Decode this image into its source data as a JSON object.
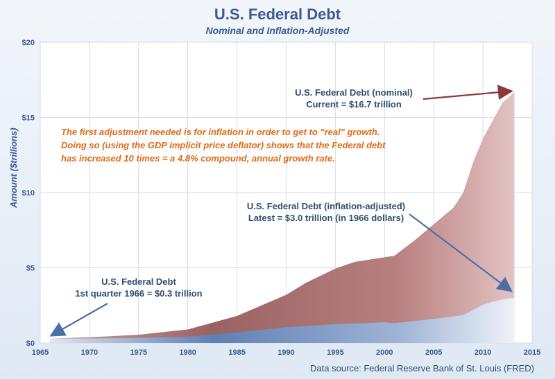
{
  "chart_data": {
    "type": "area",
    "title": "U.S. Federal Debt",
    "subtitle": "Nominal and Inflation-Adjusted",
    "xlabel": "",
    "ylabel": "Amount ($trillions)",
    "xlim": [
      1965,
      2015
    ],
    "ylim": [
      0,
      20
    ],
    "x_ticks": [
      1965,
      1970,
      1975,
      1980,
      1985,
      1990,
      1995,
      2000,
      2005,
      2010,
      2015
    ],
    "y_ticks": [
      0,
      5,
      10,
      15,
      20
    ],
    "y_tick_labels": [
      "$0",
      "$5",
      "$10",
      "$15",
      "$20"
    ],
    "grid": true,
    "series": [
      {
        "name": "U.S. Federal Debt (nominal)",
        "color": "#a8696a",
        "x": [
          1966,
          1970,
          1975,
          1980,
          1985,
          1990,
          1992,
          1995,
          1997,
          2000,
          2001,
          2003,
          2005,
          2007,
          2008,
          2009,
          2010,
          2011,
          2012,
          2013.2
        ],
        "y": [
          0.3,
          0.38,
          0.55,
          0.9,
          1.8,
          3.2,
          4.0,
          4.95,
          5.4,
          5.7,
          5.8,
          6.8,
          7.9,
          9.0,
          10.0,
          12.0,
          13.6,
          14.8,
          16.0,
          16.7
        ]
      },
      {
        "name": "U.S. Federal Debt (inflation-adjusted)",
        "color": "#6a86b8",
        "x": [
          1966,
          1970,
          1975,
          1980,
          1985,
          1990,
          1995,
          2000,
          2001,
          2005,
          2008,
          2009,
          2010,
          2011,
          2012,
          2013.2
        ],
        "y": [
          0.3,
          0.3,
          0.33,
          0.42,
          0.7,
          1.05,
          1.25,
          1.37,
          1.32,
          1.6,
          1.85,
          2.2,
          2.55,
          2.75,
          2.9,
          3.0
        ]
      }
    ],
    "annotations": {
      "nominal": {
        "line1": "U.S. Federal Debt (nominal)",
        "line2": "Current = $16.7 trillion"
      },
      "adjusted": {
        "line1": "U.S. Federal Debt (inflation-adjusted)",
        "line2": "Latest = $3.0 trillion (in 1966 dollars)"
      },
      "start": {
        "line1": "U.S. Federal Debt",
        "line2": "1st quarter 1966 = $0.3 trillion"
      },
      "note": [
        "The first adjustment needed is for inflation in order to get to \"real\" growth.",
        "Doing so (using the GDP implicit price deflator) shows that the Federal debt",
        "has increased 10 times = a 4.8% compound, annual growth rate."
      ]
    },
    "source": "Data source: Federal Reserve Bank of St. Louis (FRED)"
  }
}
